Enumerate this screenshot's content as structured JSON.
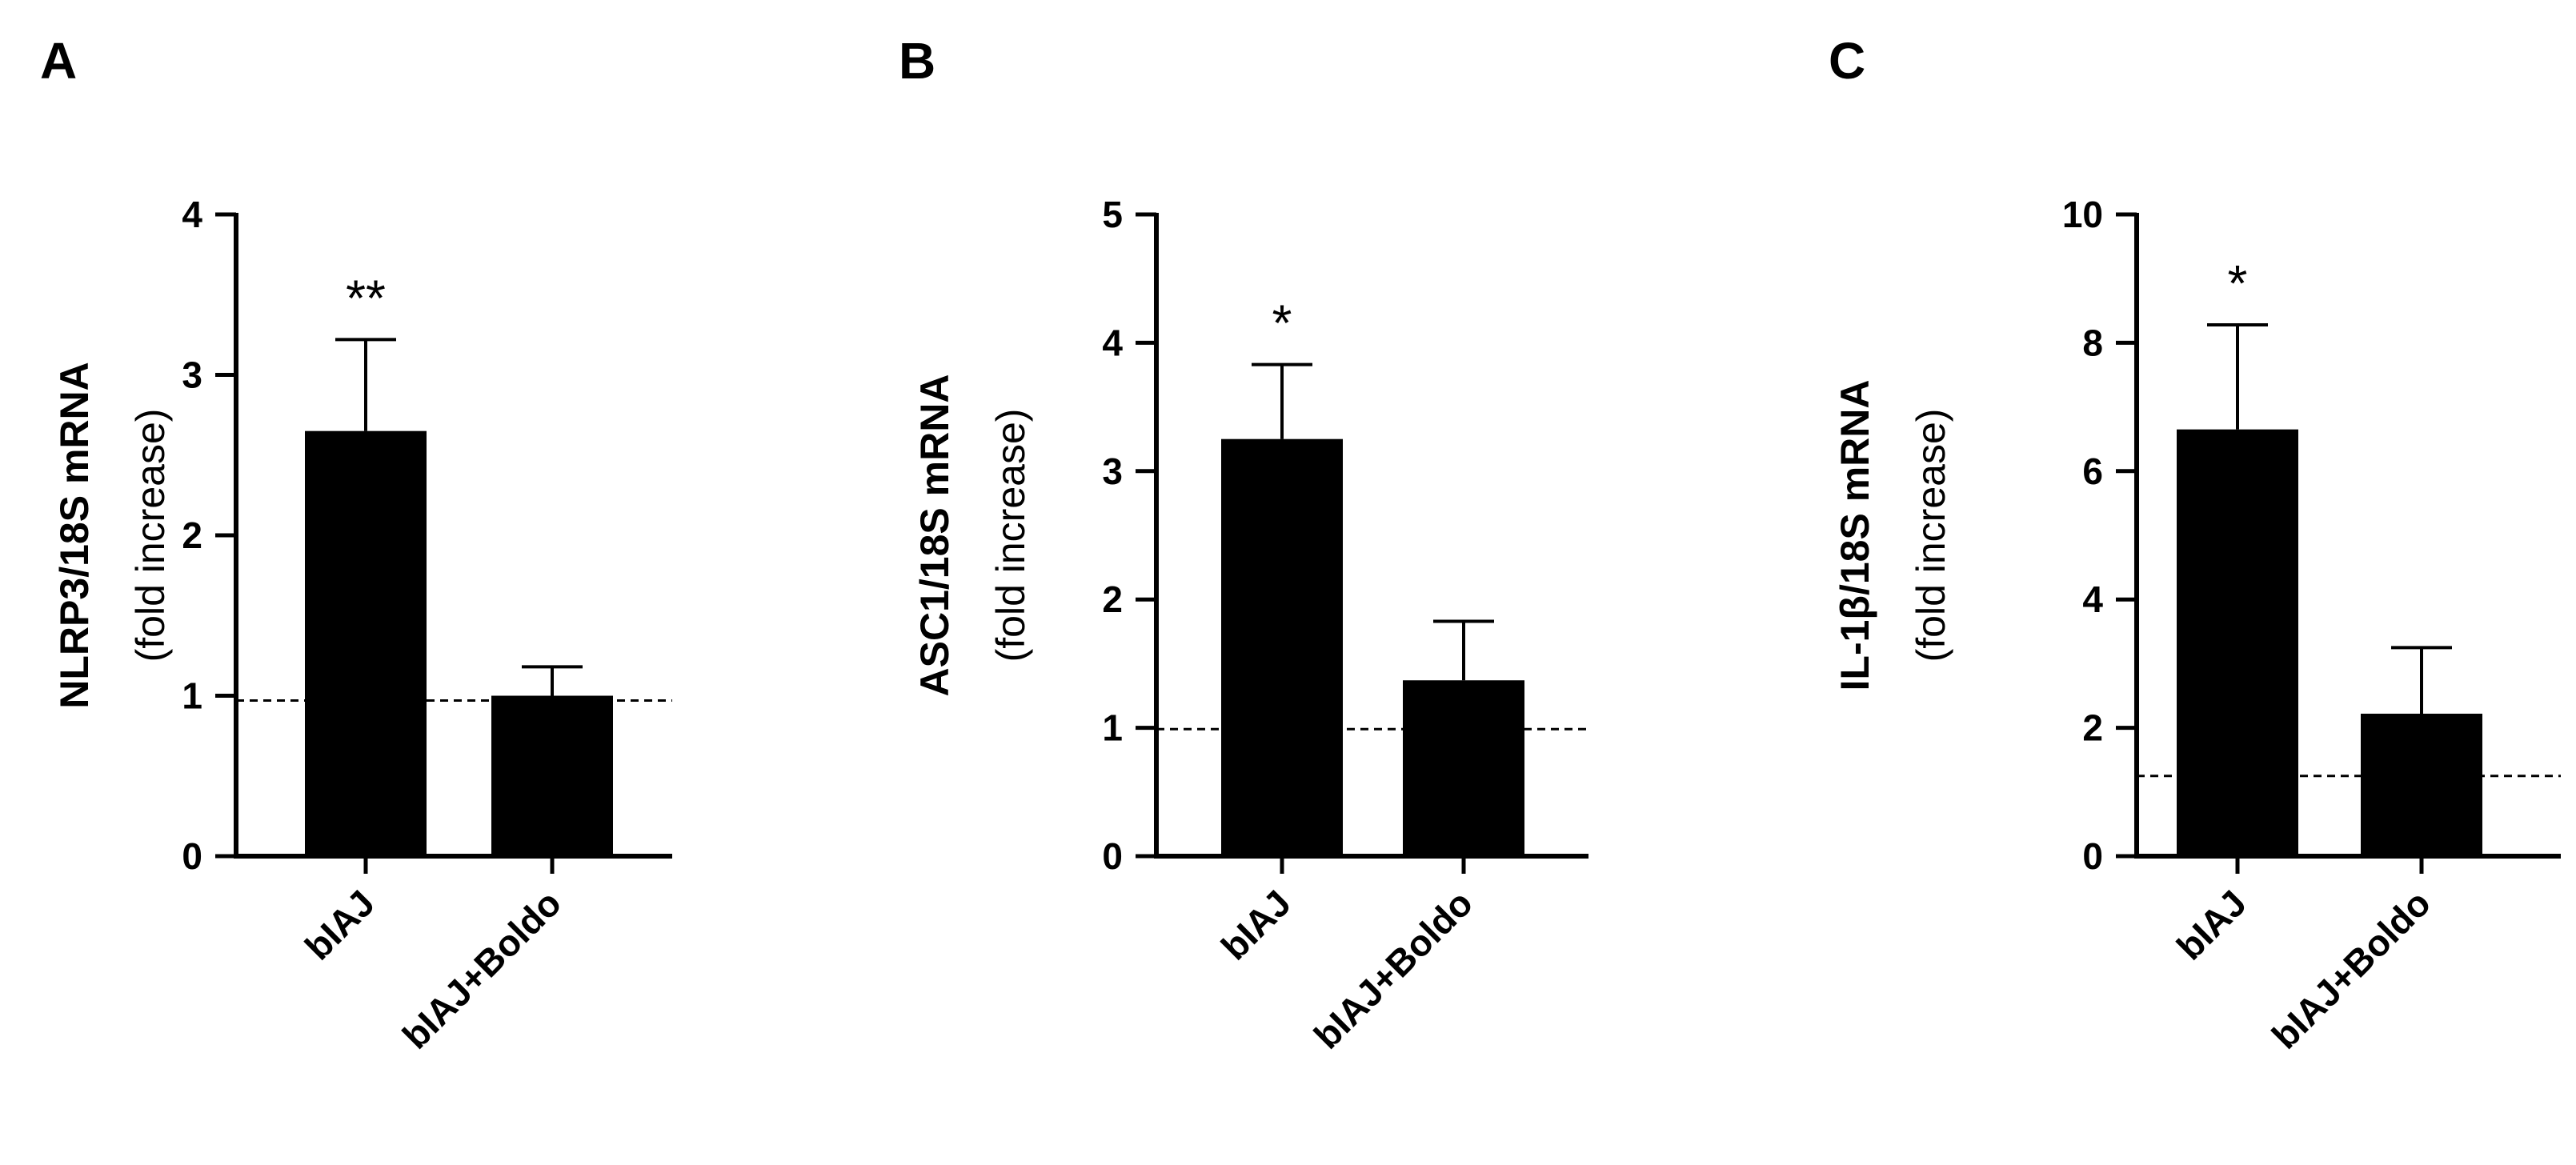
{
  "chart_data": [
    {
      "type": "bar",
      "panel": "A",
      "categories": [
        "bIAJ",
        "bIAJ+Boldo"
      ],
      "series": [
        {
          "values": [
            2.65,
            1.0
          ],
          "error_upper": [
            3.22,
            1.18
          ]
        }
      ],
      "significance": [
        "**",
        ""
      ],
      "ylabel": "NLRP3/18S mRNA",
      "ylabel_sub": "(fold increase)",
      "ylim": [
        0,
        4
      ],
      "yticks": [
        0,
        1,
        2,
        3,
        4
      ],
      "reference_line": 0.97,
      "bar_color": "#000000",
      "grid": false
    },
    {
      "type": "bar",
      "panel": "B",
      "categories": [
        "bIAJ",
        "bIAJ+Boldo"
      ],
      "series": [
        {
          "values": [
            3.25,
            1.37
          ],
          "error_upper": [
            3.83,
            1.83
          ]
        }
      ],
      "significance": [
        "*",
        ""
      ],
      "ylabel": "ASC1/18S mRNA",
      "ylabel_sub": "(fold increase)",
      "ylim": [
        0,
        5
      ],
      "yticks": [
        0,
        1,
        2,
        3,
        4,
        5
      ],
      "reference_line": 0.99,
      "bar_color": "#000000",
      "grid": false
    },
    {
      "type": "bar",
      "panel": "C",
      "categories": [
        "bIAJ",
        "bIAJ+Boldo"
      ],
      "series": [
        {
          "values": [
            6.65,
            2.22
          ],
          "error_upper": [
            8.28,
            3.25
          ]
        }
      ],
      "significance": [
        "*",
        ""
      ],
      "ylabel": "IL-1β/18S mRNA",
      "ylabel_sub": "(fold increase)",
      "ylim": [
        0,
        10
      ],
      "yticks": [
        0,
        2,
        4,
        6,
        8,
        10
      ],
      "reference_line": 1.25,
      "bar_color": "#000000",
      "grid": false
    }
  ]
}
